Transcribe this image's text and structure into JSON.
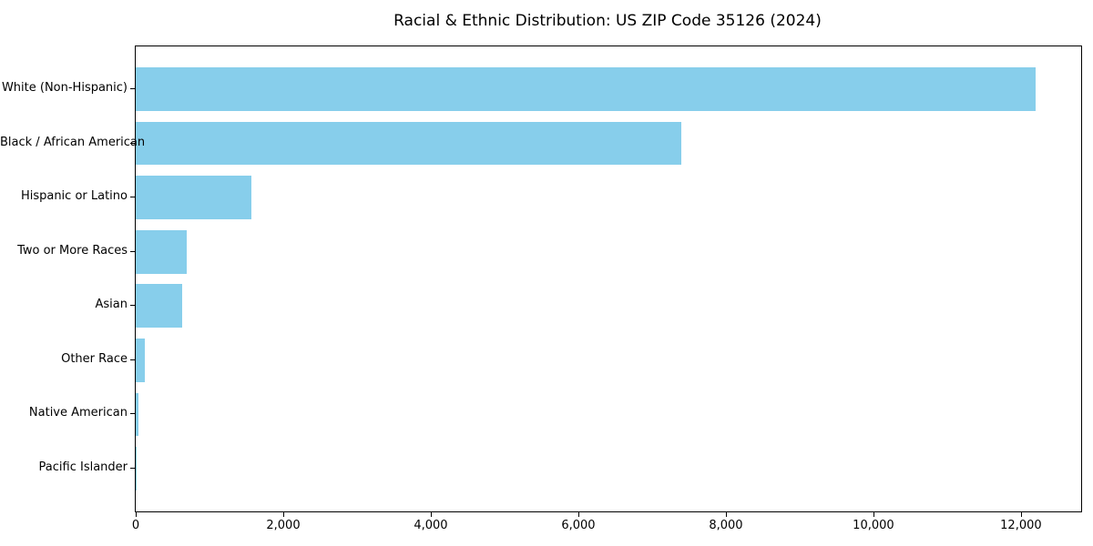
{
  "chart_data": {
    "type": "bar",
    "orientation": "horizontal",
    "title": "Racial & Ethnic Distribution: US ZIP Code 35126 (2024)",
    "categories": [
      "White (Non-Hispanic)",
      "Black / African American",
      "Hispanic or Latino",
      "Two or More Races",
      "Asian",
      "Other Race",
      "Native American",
      "Pacific Islander"
    ],
    "values": [
      12200,
      7390,
      1570,
      690,
      630,
      120,
      35,
      10
    ],
    "xlabel": "",
    "ylabel": "",
    "xlim": [
      0,
      12816
    ],
    "xticks": [
      0,
      2000,
      4000,
      6000,
      8000,
      10000,
      12000
    ],
    "xtick_labels": [
      "0",
      "2,000",
      "4,000",
      "6,000",
      "8,000",
      "10,000",
      "12,000"
    ],
    "bar_color": "#87ceeb",
    "axis_color": "#000000",
    "background_color": "#ffffff",
    "grid": false,
    "legend": null,
    "value_sort": "descending"
  }
}
